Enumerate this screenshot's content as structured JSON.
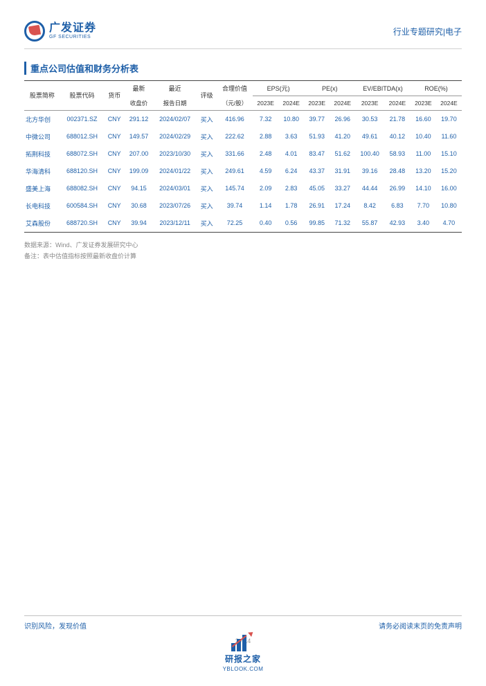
{
  "header": {
    "logo_cn": "广发证券",
    "logo_en": "GF SECURITIES",
    "right_text": "行业专题研究|电子"
  },
  "section_title": "重点公司估值和财务分析表",
  "table": {
    "columns": {
      "name": "股票简称",
      "code": "股票代码",
      "currency": "货币",
      "close": "最新",
      "close_sub": "收盘价",
      "date": "最近",
      "date_sub": "报告日期",
      "rating": "评级",
      "fair": "合理价值",
      "fair_sub": "（元/股）",
      "eps": "EPS(元)",
      "pe": "PE(x)",
      "ev": "EV/EBITDA(x)",
      "roe": "ROE(%)",
      "y23": "2023E",
      "y24": "2024E"
    },
    "rows": [
      {
        "name": "北方华创",
        "code": "002371.SZ",
        "ccy": "CNY",
        "close": "291.12",
        "date": "2024/02/07",
        "rating": "买入",
        "fair": "416.96",
        "eps23": "7.32",
        "eps24": "10.80",
        "pe23": "39.77",
        "pe24": "26.96",
        "ev23": "30.53",
        "ev24": "21.78",
        "roe23": "16.60",
        "roe24": "19.70"
      },
      {
        "name": "中微公司",
        "code": "688012.SH",
        "ccy": "CNY",
        "close": "149.57",
        "date": "2024/02/29",
        "rating": "买入",
        "fair": "222.62",
        "eps23": "2.88",
        "eps24": "3.63",
        "pe23": "51.93",
        "pe24": "41.20",
        "ev23": "49.61",
        "ev24": "40.12",
        "roe23": "10.40",
        "roe24": "11.60"
      },
      {
        "name": "拓荆科技",
        "code": "688072.SH",
        "ccy": "CNY",
        "close": "207.00",
        "date": "2023/10/30",
        "rating": "买入",
        "fair": "331.66",
        "eps23": "2.48",
        "eps24": "4.01",
        "pe23": "83.47",
        "pe24": "51.62",
        "ev23": "100.40",
        "ev24": "58.93",
        "roe23": "11.00",
        "roe24": "15.10"
      },
      {
        "name": "华海清科",
        "code": "688120.SH",
        "ccy": "CNY",
        "close": "199.09",
        "date": "2024/01/22",
        "rating": "买入",
        "fair": "249.61",
        "eps23": "4.59",
        "eps24": "6.24",
        "pe23": "43.37",
        "pe24": "31.91",
        "ev23": "39.16",
        "ev24": "28.48",
        "roe23": "13.20",
        "roe24": "15.20"
      },
      {
        "name": "盛美上海",
        "code": "688082.SH",
        "ccy": "CNY",
        "close": "94.15",
        "date": "2024/03/01",
        "rating": "买入",
        "fair": "145.74",
        "eps23": "2.09",
        "eps24": "2.83",
        "pe23": "45.05",
        "pe24": "33.27",
        "ev23": "44.44",
        "ev24": "26.99",
        "roe23": "14.10",
        "roe24": "16.00"
      },
      {
        "name": "长电科技",
        "code": "600584.SH",
        "ccy": "CNY",
        "close": "30.68",
        "date": "2023/07/26",
        "rating": "买入",
        "fair": "39.74",
        "eps23": "1.14",
        "eps24": "1.78",
        "pe23": "26.91",
        "pe24": "17.24",
        "ev23": "8.42",
        "ev24": "6.83",
        "roe23": "7.70",
        "roe24": "10.80"
      },
      {
        "name": "艾森股份",
        "code": "688720.SH",
        "ccy": "CNY",
        "close": "39.94",
        "date": "2023/12/11",
        "rating": "买入",
        "fair": "72.25",
        "eps23": "0.40",
        "eps24": "0.56",
        "pe23": "99.85",
        "pe24": "71.32",
        "ev23": "55.87",
        "ev24": "42.93",
        "roe23": "3.40",
        "roe24": "4.70"
      }
    ]
  },
  "notes": {
    "source": "数据来源：Wind、广发证券发展研究中心",
    "remark": "备注：表中估值指标按照最新收盘价计算"
  },
  "footer": {
    "left": "识别风险，发现价值",
    "right": "请务必阅读末页的免责声明",
    "page": "2 / 14"
  },
  "watermark": {
    "text": "研报之家",
    "url": "YBLOOK.COM"
  },
  "colors": {
    "brand_blue": "#1e5fa8",
    "brand_red": "#d9534f",
    "text_gray": "#888888",
    "border": "#444444"
  }
}
